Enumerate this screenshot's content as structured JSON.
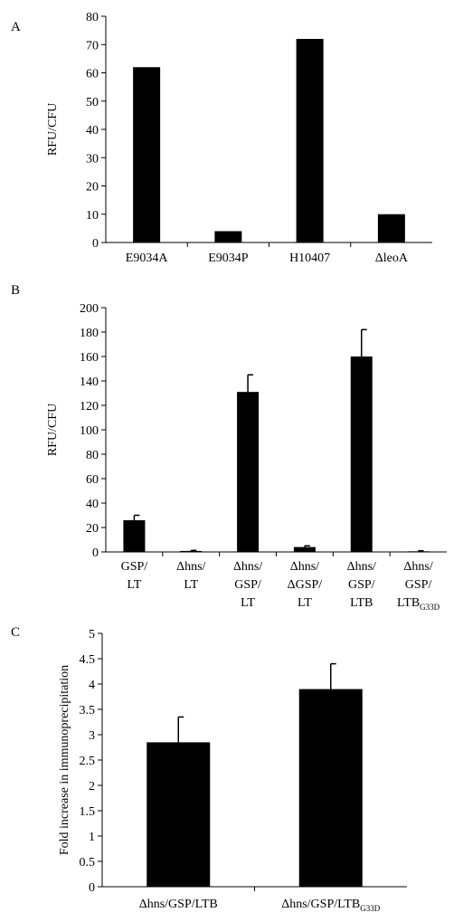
{
  "panels": [
    "A",
    "B",
    "C"
  ],
  "chart_data": [
    {
      "type": "bar",
      "panel": "A",
      "ylabel": "RFU/CFU",
      "ylim": [
        0,
        80
      ],
      "ytick_step": 10,
      "categories": [
        {
          "lines": [
            "E9034A"
          ]
        },
        {
          "lines": [
            "E9034P"
          ]
        },
        {
          "lines": [
            "H10407"
          ]
        },
        {
          "lines": [
            "ΔleoA"
          ]
        }
      ],
      "values": [
        62,
        4,
        72,
        10
      ],
      "errors": [
        null,
        null,
        null,
        null
      ],
      "grid": false,
      "bar_color": "#000000"
    },
    {
      "type": "bar",
      "panel": "B",
      "ylabel": "RFU/CFU",
      "ylim": [
        0,
        200
      ],
      "ytick_step": 20,
      "categories": [
        {
          "lines": [
            "GSP/",
            "LT"
          ]
        },
        {
          "lines": [
            "Δhns/",
            "LT"
          ]
        },
        {
          "lines": [
            "Δhns/",
            "GSP/",
            "LT"
          ]
        },
        {
          "lines": [
            "Δhns/",
            "ΔGSP/",
            "LT"
          ]
        },
        {
          "lines": [
            "Δhns/",
            "GSP/",
            "LTB"
          ]
        },
        {
          "lines": [
            "Δhns/",
            "GSP/",
            "LTB"
          ],
          "subscript": "G33D"
        }
      ],
      "values": [
        26,
        0.8,
        131,
        4,
        160,
        0.5
      ],
      "errors": [
        4,
        0.5,
        14,
        1,
        22,
        0.5
      ],
      "grid": false,
      "bar_color": "#000000"
    },
    {
      "type": "bar",
      "panel": "C",
      "ylabel": "Fold increase in immunoprecipitation",
      "ylim": [
        0,
        5
      ],
      "ytick_step": 0.5,
      "categories": [
        {
          "lines": [
            "Δhns/GSP/LTB"
          ]
        },
        {
          "lines": [
            "Δhns/GSP/LTB"
          ],
          "subscript": "G33D"
        }
      ],
      "values": [
        2.85,
        3.9
      ],
      "errors": [
        0.5,
        0.5
      ],
      "grid": false,
      "bar_color": "#000000"
    }
  ]
}
